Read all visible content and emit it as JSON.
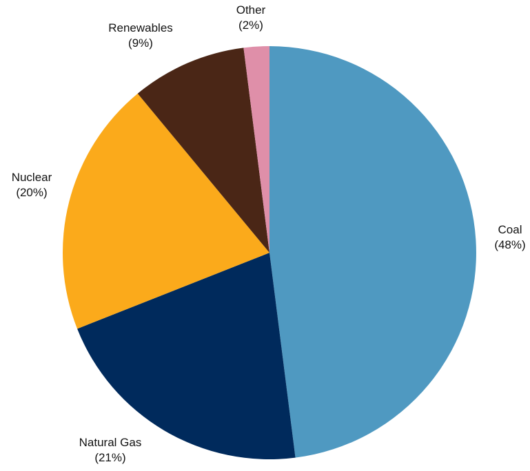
{
  "chart_data": {
    "type": "pie",
    "title": "",
    "start_angle_deg": 0,
    "direction": "clockwise",
    "slices": [
      {
        "label": "Coal",
        "value": 48,
        "pct_text": "(48%)",
        "color": "#4f99c1"
      },
      {
        "label": "Natural Gas",
        "value": 21,
        "pct_text": "(21%)",
        "color": "#002a5c"
      },
      {
        "label": "Nuclear",
        "value": 20,
        "pct_text": "(20%)",
        "color": "#fbaa1b"
      },
      {
        "label": "Renewables",
        "value": 9,
        "pct_text": "(9%)",
        "color": "#4a2616"
      },
      {
        "label": "Other",
        "value": 2,
        "pct_text": "(2%)",
        "color": "#df8fa9"
      }
    ]
  }
}
